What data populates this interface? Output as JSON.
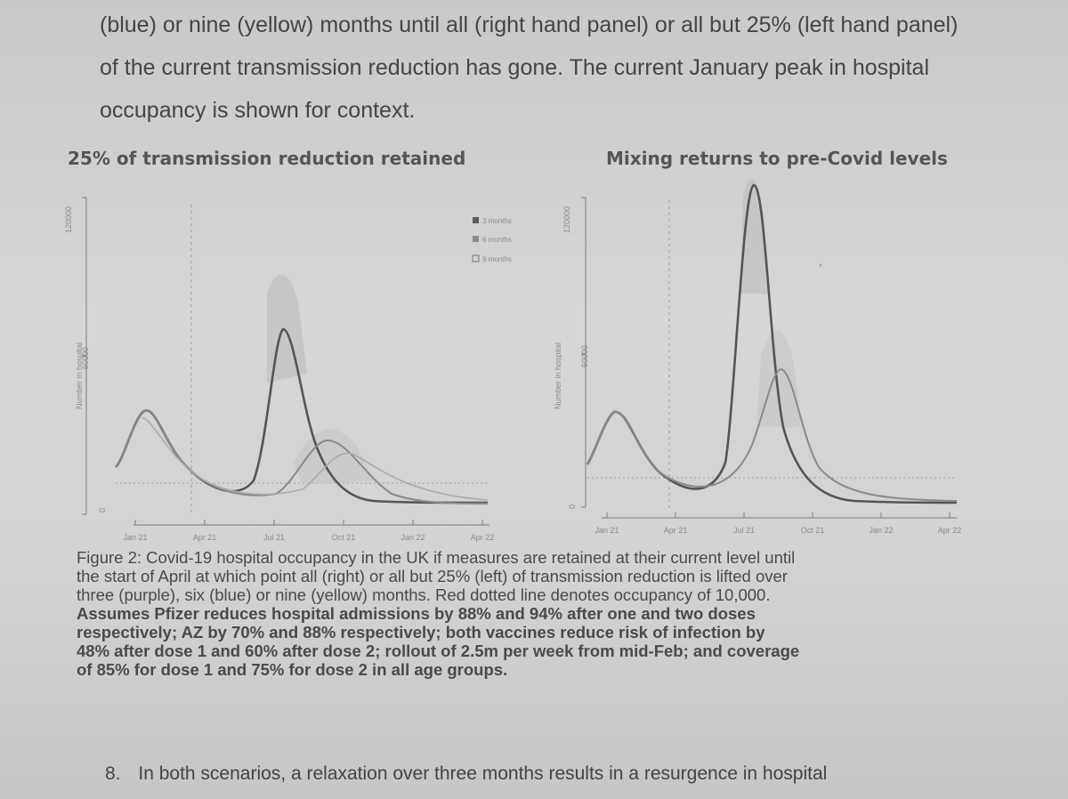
{
  "intro": {
    "line1": "(blue) or nine (yellow) months until all (right hand panel) or all but 25% (left hand panel)",
    "line2": "of the current transmission reduction has gone. The current January peak in hospital",
    "line3": "occupancy is shown for context."
  },
  "left_panel": {
    "title": "25% of transmission reduction retained",
    "ylabel": "Number in hospital",
    "y_ticks": [
      "0",
      "60000",
      "120000"
    ],
    "x_ticks": [
      "Jan 21",
      "Apr 21",
      "Jul 21",
      "Oct 21",
      "Jan 22",
      "Apr 22"
    ],
    "legend": [
      "3 months",
      "6 months",
      "9 months"
    ]
  },
  "right_panel": {
    "title": "Mixing returns to pre-Covid levels",
    "ylabel": "Number in hospital",
    "y_ticks": [
      "0",
      "60000",
      "120000"
    ],
    "x_ticks": [
      "Jan 21",
      "Apr 21",
      "Jul 21",
      "Oct 21",
      "Jan 22",
      "Apr 22"
    ]
  },
  "caption": {
    "line1": "Figure 2: Covid-19 hospital occupancy in the UK if measures are retained at their current level until",
    "line2": "the start of April at which point all (right) or all but 25% (left) of transmission reduction is lifted over",
    "line3": "three (purple), six (blue) or nine (yellow) months. Red dotted line denotes occupancy of 10,000.",
    "line4": "Assumes Pfizer reduces hospital admissions by 88% and 94% after one and two doses",
    "line5": "respectively; AZ by 70% and 88% respectively; both vaccines reduce risk of infection by",
    "line6": "48% after dose 1 and 60% after dose 2; rollout of 2.5m per week from mid-Feb; and coverage",
    "line7": "of 85% for dose 1 and 75% for dose 2 in all age groups."
  },
  "paragraph8": {
    "number": "8.",
    "text": "In both scenarios, a relaxation over three months results in a resurgence in hospital"
  },
  "chart_data": [
    {
      "type": "line",
      "title": "25% of transmission reduction retained",
      "ylabel": "Number in hospital",
      "ylim": [
        0,
        120000
      ],
      "x": [
        "Jan 21",
        "Apr 21",
        "Jul 21",
        "Oct 21",
        "Jan 22",
        "Apr 22"
      ],
      "reference_line": 10000,
      "series": [
        {
          "name": "3 months",
          "points": [
            [
              0,
              18000
            ],
            [
              0.35,
              38000
            ],
            [
              1,
              5000
            ],
            [
              1.8,
              6000
            ],
            [
              2.3,
              28000
            ],
            [
              2.6,
              68000
            ],
            [
              3.1,
              30000
            ],
            [
              3.6,
              8000
            ],
            [
              4.4,
              3000
            ],
            [
              5,
              2000
            ]
          ]
        },
        {
          "name": "6 months",
          "points": [
            [
              0,
              18000
            ],
            [
              0.35,
              38000
            ],
            [
              1,
              5000
            ],
            [
              2,
              6000
            ],
            [
              3,
              20000
            ],
            [
              3.4,
              25000
            ],
            [
              4,
              12000
            ],
            [
              4.6,
              5000
            ],
            [
              5,
              3000
            ]
          ]
        },
        {
          "name": "9 months",
          "points": [
            [
              0,
              18000
            ],
            [
              0.35,
              38000
            ],
            [
              1,
              5000
            ],
            [
              2.5,
              6000
            ],
            [
              3.3,
              16000
            ],
            [
              3.6,
              22000
            ],
            [
              4.2,
              12000
            ],
            [
              5,
              4000
            ]
          ]
        }
      ]
    },
    {
      "type": "line",
      "title": "Mixing returns to pre-Covid levels",
      "ylabel": "Number in hospital",
      "ylim": [
        0,
        120000
      ],
      "x": [
        "Jan 21",
        "Apr 21",
        "Jul 21",
        "Oct 21",
        "Jan 22",
        "Apr 22"
      ],
      "reference_line": 10000,
      "series": [
        {
          "name": "3 months",
          "points": [
            [
              0,
              18000
            ],
            [
              0.35,
              38000
            ],
            [
              1,
              5000
            ],
            [
              1.6,
              7000
            ],
            [
              2.3,
              80000
            ],
            [
              2.55,
              122000
            ],
            [
              2.8,
              70000
            ],
            [
              3.3,
              8000
            ],
            [
              4,
              3000
            ],
            [
              5,
              2000
            ]
          ]
        },
        {
          "name": "6 months",
          "points": [
            [
              0,
              18000
            ],
            [
              0.35,
              38000
            ],
            [
              1,
              5000
            ],
            [
              2.2,
              8000
            ],
            [
              2.9,
              40000
            ],
            [
              3.2,
              50000
            ],
            [
              3.6,
              25000
            ],
            [
              4.2,
              5000
            ],
            [
              5,
              2000
            ]
          ]
        }
      ]
    }
  ]
}
